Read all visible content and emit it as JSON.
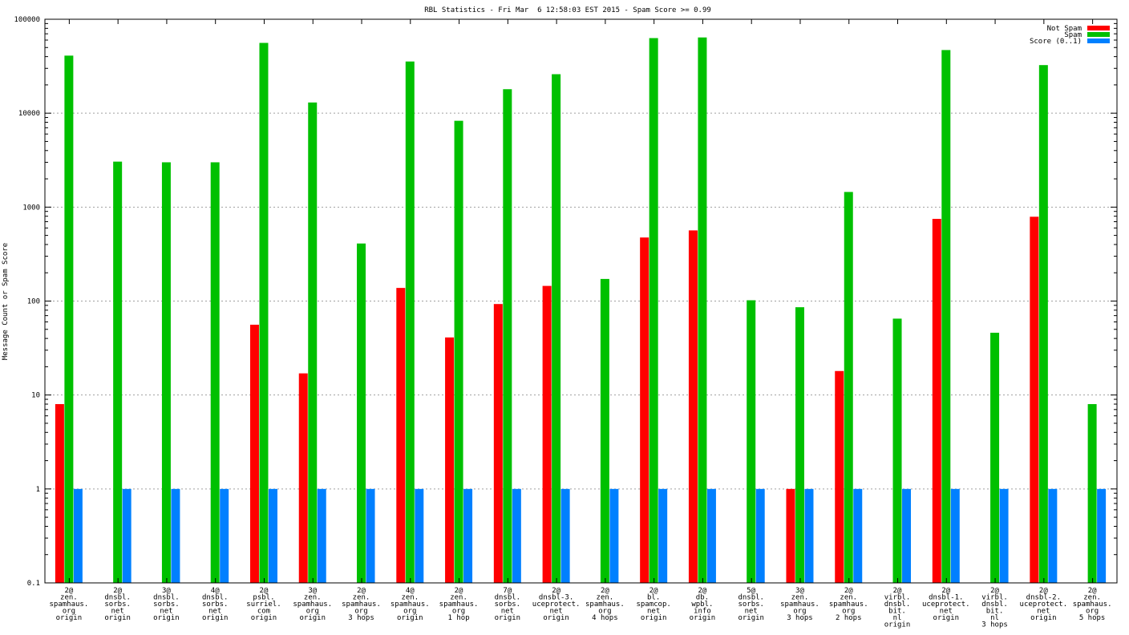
{
  "chart_data": {
    "type": "bar",
    "title": "RBL Statistics - Fri Mar  6 12:58:03 EST 2015 - Spam Score >= 0.99",
    "ylabel": "Message Count or Spam Score",
    "xlabel": "",
    "yscale": "log",
    "ylim": [
      0.1,
      100000
    ],
    "yticks": [
      "0.1",
      "1",
      "10",
      "100",
      "1000",
      "10000",
      "100000"
    ],
    "grid": true,
    "legend_position": "top-right",
    "categories": [
      [
        "2@",
        "zen.",
        "spamhaus.",
        "org",
        "origin"
      ],
      [
        "2@",
        "dnsbl.",
        "sorbs.",
        "net",
        "origin"
      ],
      [
        "3@",
        "dnsbl.",
        "sorbs.",
        "net",
        "origin"
      ],
      [
        "4@",
        "dnsbl.",
        "sorbs.",
        "net",
        "origin"
      ],
      [
        "2@",
        "psbl.",
        "surriel.",
        "com",
        "origin"
      ],
      [
        "3@",
        "zen.",
        "spamhaus.",
        "org",
        "origin"
      ],
      [
        "2@",
        "zen.",
        "spamhaus.",
        "org",
        "3 hops"
      ],
      [
        "4@",
        "zen.",
        "spamhaus.",
        "org",
        "origin"
      ],
      [
        "2@",
        "zen.",
        "spamhaus.",
        "org",
        "1 hop"
      ],
      [
        "7@",
        "dnsbl.",
        "sorbs.",
        "net",
        "origin"
      ],
      [
        "2@",
        "dnsbl-3.",
        "uceprotect.",
        "net",
        "origin"
      ],
      [
        "2@",
        "zen.",
        "spamhaus.",
        "org",
        "4 hops"
      ],
      [
        "2@",
        "bl.",
        "spamcop.",
        "net",
        "origin"
      ],
      [
        "2@",
        "db.",
        "wpbl.",
        "info",
        "origin"
      ],
      [
        "5@",
        "dnsbl.",
        "sorbs.",
        "net",
        "origin"
      ],
      [
        "3@",
        "zen.",
        "spamhaus.",
        "org",
        "3 hops"
      ],
      [
        "2@",
        "zen.",
        "spamhaus.",
        "org",
        "2 hops"
      ],
      [
        "2@",
        "virbl.",
        "dnsbl.",
        "bit.",
        "nl",
        "origin"
      ],
      [
        "2@",
        "dnsbl-1.",
        "uceprotect.",
        "net",
        "origin"
      ],
      [
        "2@",
        "virbl.",
        "dnsbl.",
        "bit.",
        "nl",
        "3 hops"
      ],
      [
        "2@",
        "dnsbl-2.",
        "uceprotect.",
        "net",
        "origin"
      ],
      [
        "2@",
        "zen.",
        "spamhaus.",
        "org",
        "5 hops"
      ]
    ],
    "series": [
      {
        "name": "Not Spam",
        "color": "#ff0000",
        "values": [
          8,
          0,
          0,
          0,
          56,
          17,
          0,
          138,
          41,
          93,
          145,
          0,
          475,
          565,
          0,
          1,
          18,
          0,
          750,
          0,
          790,
          0
        ]
      },
      {
        "name": "Spam",
        "color": "#00c000",
        "values": [
          41000,
          3050,
          3000,
          3000,
          56000,
          13000,
          410,
          35500,
          8300,
          18000,
          26000,
          172,
          63000,
          64000,
          102,
          86,
          1450,
          65,
          47000,
          46,
          32500,
          8
        ]
      },
      {
        "name": "Score (0..1)",
        "color": "#0080ff",
        "values": [
          1,
          1,
          1,
          1,
          1,
          1,
          1,
          1,
          1,
          1,
          1,
          1,
          1,
          1,
          1,
          1,
          1,
          1,
          1,
          1,
          1,
          1
        ]
      }
    ]
  }
}
